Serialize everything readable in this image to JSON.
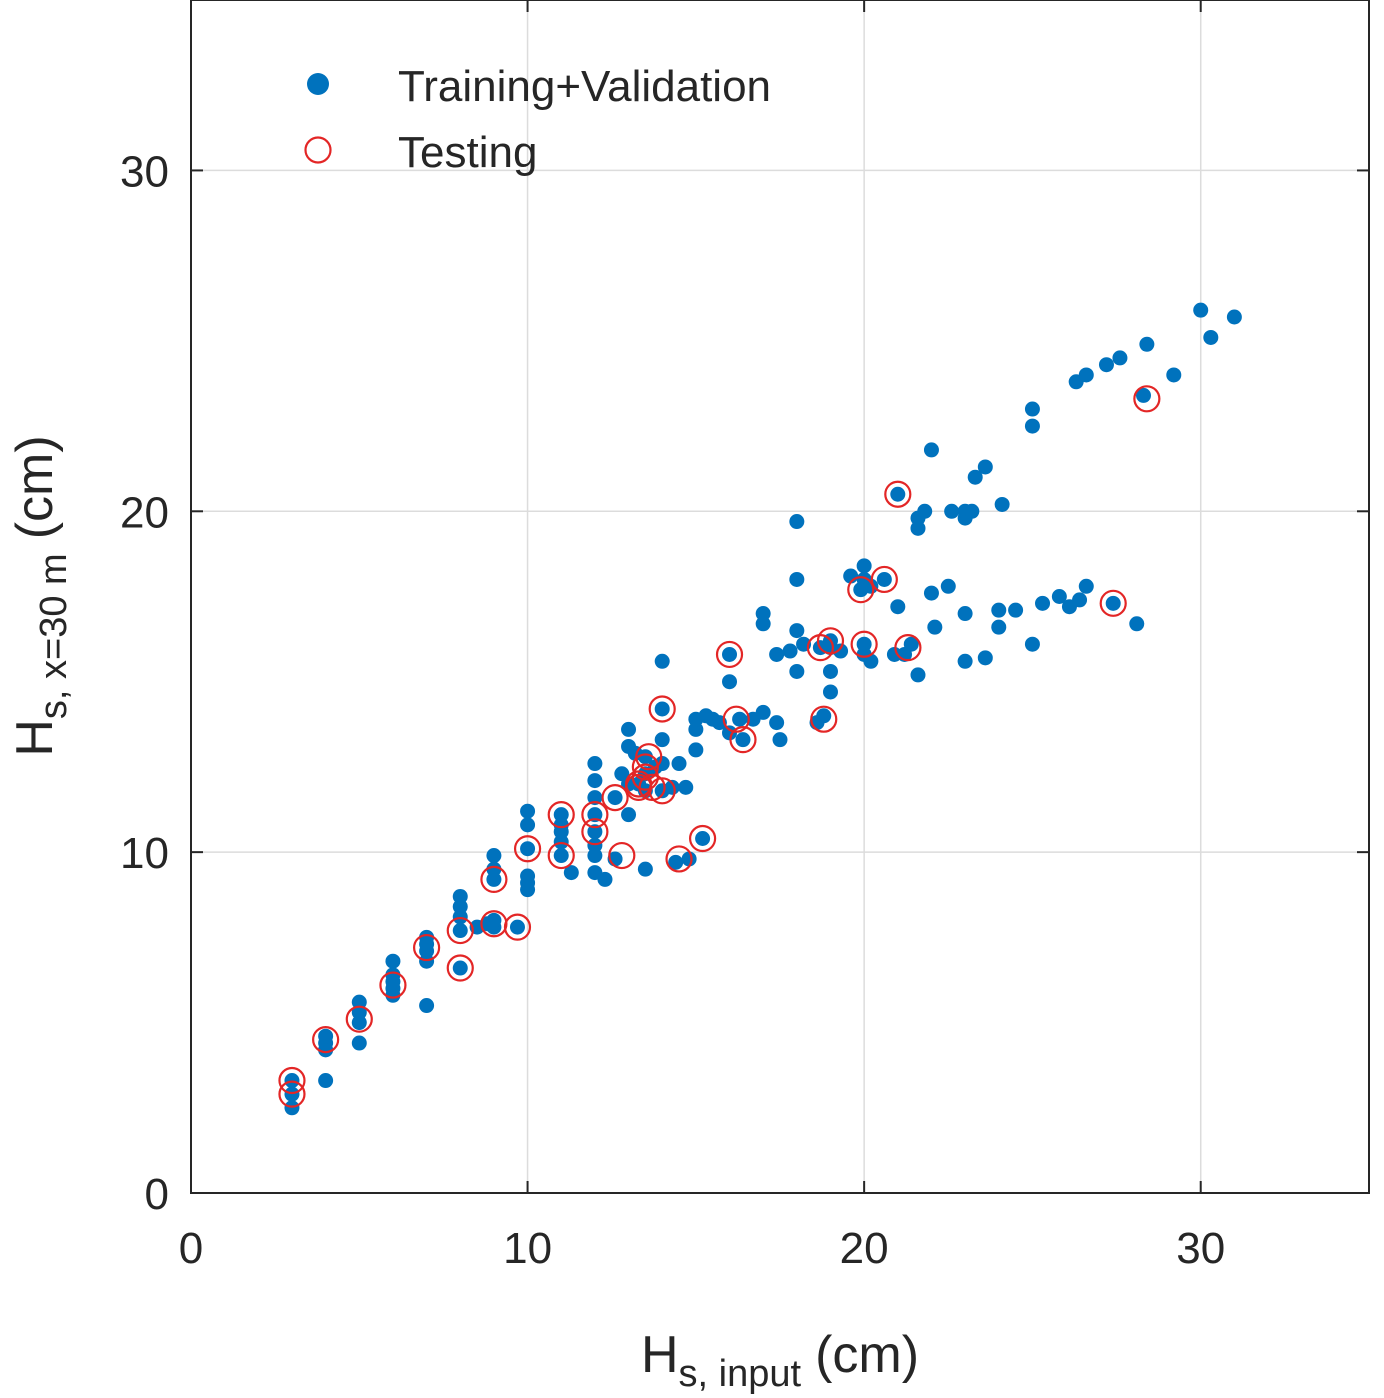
{
  "chart_data": {
    "type": "scatter",
    "title": "",
    "xlabel": {
      "main": "H",
      "sub": "s, input",
      "unit": "(cm)"
    },
    "ylabel": {
      "main": "H",
      "sub": "s, x=30 m",
      "unit": "(cm)"
    },
    "xlim": [
      0,
      35
    ],
    "ylim": [
      0,
      35
    ],
    "xticks": [
      0,
      10,
      20,
      30
    ],
    "yticks": [
      0,
      10,
      20,
      30
    ],
    "xtick_labels": [
      "0",
      "10",
      "20",
      "30"
    ],
    "ytick_labels": [
      "0",
      "10",
      "20",
      "30"
    ],
    "grid": true,
    "legend_position": "top-left",
    "series": [
      {
        "name": "Training+Validation",
        "marker": "filled-circle",
        "color": "#0072BD",
        "points": [
          [
            3,
            2.5
          ],
          [
            3,
            2.9
          ],
          [
            3,
            3.3
          ],
          [
            4,
            3.3
          ],
          [
            4,
            4.2
          ],
          [
            4,
            4.4
          ],
          [
            4,
            4.6
          ],
          [
            5,
            4.4
          ],
          [
            5,
            5.0
          ],
          [
            5,
            5.3
          ],
          [
            5,
            5.6
          ],
          [
            6,
            5.8
          ],
          [
            6,
            6.0
          ],
          [
            6,
            6.2
          ],
          [
            6,
            6.4
          ],
          [
            6,
            6.8
          ],
          [
            7,
            5.5
          ],
          [
            7,
            6.8
          ],
          [
            7,
            7.1
          ],
          [
            7,
            7.3
          ],
          [
            7,
            7.5
          ],
          [
            8,
            6.6
          ],
          [
            8,
            7.7
          ],
          [
            8,
            8.1
          ],
          [
            8,
            8.4
          ],
          [
            8,
            8.7
          ],
          [
            8.5,
            7.8
          ],
          [
            8.8,
            7.9
          ],
          [
            9,
            7.8
          ],
          [
            9,
            8.0
          ],
          [
            9,
            9.2
          ],
          [
            9,
            9.5
          ],
          [
            9,
            9.9
          ],
          [
            9.7,
            7.8
          ],
          [
            10,
            8.9
          ],
          [
            10,
            9.1
          ],
          [
            10,
            9.3
          ],
          [
            10,
            10.1
          ],
          [
            10,
            10.8
          ],
          [
            10,
            11.2
          ],
          [
            11,
            9.9
          ],
          [
            11,
            10.3
          ],
          [
            11,
            10.6
          ],
          [
            11,
            10.8
          ],
          [
            11,
            11.1
          ],
          [
            11.3,
            9.4
          ],
          [
            12,
            9.4
          ],
          [
            12,
            9.9
          ],
          [
            12,
            10.2
          ],
          [
            12,
            10.6
          ],
          [
            12,
            11.1
          ],
          [
            12,
            11.6
          ],
          [
            12,
            12.1
          ],
          [
            12,
            12.6
          ],
          [
            12.3,
            9.2
          ],
          [
            12.6,
            9.8
          ],
          [
            12.6,
            11.6
          ],
          [
            12.8,
            12.3
          ],
          [
            13,
            11.1
          ],
          [
            13,
            12.0
          ],
          [
            13,
            13.1
          ],
          [
            13,
            13.6
          ],
          [
            13.2,
            12.9
          ],
          [
            13.3,
            12.0
          ],
          [
            13.5,
            9.5
          ],
          [
            13.5,
            11.8
          ],
          [
            13.5,
            12.3
          ],
          [
            13.5,
            12.8
          ],
          [
            13.8,
            12.5
          ],
          [
            14,
            11.8
          ],
          [
            14,
            12.6
          ],
          [
            14,
            13.3
          ],
          [
            14,
            14.2
          ],
          [
            14,
            15.6
          ],
          [
            14.3,
            11.9
          ],
          [
            14.4,
            9.7
          ],
          [
            14.5,
            12.6
          ],
          [
            14.7,
            11.9
          ],
          [
            14.8,
            9.8
          ],
          [
            15,
            13.0
          ],
          [
            15,
            13.6
          ],
          [
            15,
            13.9
          ],
          [
            15.2,
            10.4
          ],
          [
            15.3,
            14.0
          ],
          [
            15.5,
            13.9
          ],
          [
            15.7,
            13.8
          ],
          [
            16,
            13.5
          ],
          [
            16,
            15.0
          ],
          [
            16,
            15.8
          ],
          [
            16.3,
            13.9
          ],
          [
            16.4,
            13.3
          ],
          [
            16.7,
            13.9
          ],
          [
            17,
            14.1
          ],
          [
            17,
            16.7
          ],
          [
            17,
            17.0
          ],
          [
            17.4,
            13.8
          ],
          [
            17.4,
            15.8
          ],
          [
            17.5,
            13.3
          ],
          [
            17.8,
            15.9
          ],
          [
            18,
            15.3
          ],
          [
            18,
            16.5
          ],
          [
            18,
            18.0
          ],
          [
            18,
            19.7
          ],
          [
            18.2,
            16.1
          ],
          [
            18.6,
            13.8
          ],
          [
            18.7,
            16.0
          ],
          [
            18.8,
            14.0
          ],
          [
            19,
            14.7
          ],
          [
            19,
            15.3
          ],
          [
            19,
            16.0
          ],
          [
            19,
            16.2
          ],
          [
            19.3,
            15.9
          ],
          [
            19.6,
            18.1
          ],
          [
            19.9,
            17.7
          ],
          [
            20,
            15.8
          ],
          [
            20,
            16.1
          ],
          [
            20,
            17.8
          ],
          [
            20,
            18.0
          ],
          [
            20,
            18.4
          ],
          [
            20.2,
            15.6
          ],
          [
            20.2,
            17.8
          ],
          [
            20.6,
            18.0
          ],
          [
            20.9,
            15.8
          ],
          [
            21,
            17.2
          ],
          [
            21,
            20.5
          ],
          [
            21.2,
            15.8
          ],
          [
            21.4,
            16.1
          ],
          [
            21.6,
            15.2
          ],
          [
            21.6,
            19.5
          ],
          [
            21.6,
            19.8
          ],
          [
            21.8,
            20.0
          ],
          [
            22,
            17.6
          ],
          [
            22,
            21.8
          ],
          [
            22.1,
            16.6
          ],
          [
            22.5,
            17.8
          ],
          [
            22.6,
            20.0
          ],
          [
            23,
            15.6
          ],
          [
            23,
            17.0
          ],
          [
            23,
            19.8
          ],
          [
            23,
            20.0
          ],
          [
            23.2,
            20.0
          ],
          [
            23.3,
            21.0
          ],
          [
            23.6,
            15.7
          ],
          [
            23.6,
            21.3
          ],
          [
            24,
            16.6
          ],
          [
            24,
            17.1
          ],
          [
            24.1,
            20.2
          ],
          [
            24.5,
            17.1
          ],
          [
            25,
            16.1
          ],
          [
            25,
            22.5
          ],
          [
            25,
            23.0
          ],
          [
            25.3,
            17.3
          ],
          [
            25.8,
            17.5
          ],
          [
            26.1,
            17.2
          ],
          [
            26.4,
            17.4
          ],
          [
            26.3,
            23.8
          ],
          [
            26.6,
            17.8
          ],
          [
            26.6,
            24.0
          ],
          [
            27.2,
            24.3
          ],
          [
            27.4,
            17.3
          ],
          [
            27.6,
            24.5
          ],
          [
            28.1,
            16.7
          ],
          [
            28.3,
            23.4
          ],
          [
            28.4,
            24.9
          ],
          [
            29.2,
            24.0
          ],
          [
            30,
            25.9
          ],
          [
            30.3,
            25.1
          ],
          [
            31,
            25.7
          ]
        ]
      },
      {
        "name": "Testing",
        "marker": "open-circle",
        "color": "#E32626",
        "points": [
          [
            3,
            2.9
          ],
          [
            3,
            3.3
          ],
          [
            4,
            4.5
          ],
          [
            5,
            5.1
          ],
          [
            6,
            6.1
          ],
          [
            7,
            7.2
          ],
          [
            8,
            6.6
          ],
          [
            8,
            7.7
          ],
          [
            9,
            7.9
          ],
          [
            9,
            9.2
          ],
          [
            9.7,
            7.8
          ],
          [
            10,
            10.1
          ],
          [
            11,
            9.9
          ],
          [
            11,
            11.1
          ],
          [
            12,
            10.6
          ],
          [
            12,
            11.1
          ],
          [
            12.6,
            11.6
          ],
          [
            12.8,
            9.9
          ],
          [
            13.3,
            11.9
          ],
          [
            13.3,
            12.0
          ],
          [
            13.5,
            12.2
          ],
          [
            13.5,
            12.5
          ],
          [
            13.6,
            12.8
          ],
          [
            13.7,
            11.9
          ],
          [
            14,
            14.2
          ],
          [
            14,
            11.8
          ],
          [
            14.5,
            9.8
          ],
          [
            15.2,
            10.4
          ],
          [
            16,
            15.8
          ],
          [
            16.2,
            13.9
          ],
          [
            16.4,
            13.3
          ],
          [
            18.7,
            16.0
          ],
          [
            18.8,
            13.9
          ],
          [
            19,
            16.2
          ],
          [
            19.9,
            17.7
          ],
          [
            20,
            16.1
          ],
          [
            20.6,
            18.0
          ],
          [
            21,
            20.5
          ],
          [
            21.3,
            16.0
          ],
          [
            27.4,
            17.3
          ],
          [
            28.4,
            23.3
          ]
        ]
      }
    ]
  }
}
